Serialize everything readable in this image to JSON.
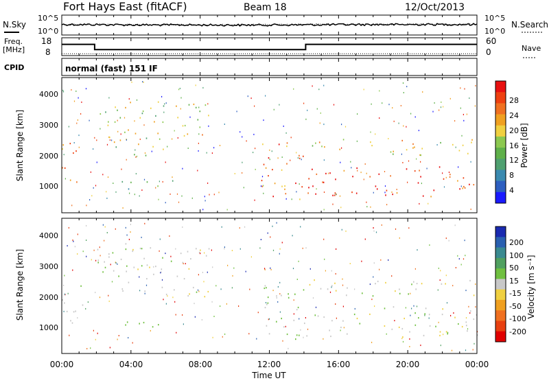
{
  "header": {
    "station": "Fort Hays East (fitACF)",
    "beam": "Beam 18",
    "date": "12/Oct/2013"
  },
  "top_panel": {
    "left_label": "N.Sky",
    "right_label": "N.Search",
    "y_top": "10^5",
    "y_bottom": "10^0"
  },
  "freq_panel": {
    "left_label": "Freq.",
    "left_unit": "[MHz]",
    "right_label": "Nave",
    "left_ticks": [
      "18",
      "8"
    ],
    "right_ticks": [
      "60",
      "0"
    ]
  },
  "cpid_panel": {
    "label": "CPID",
    "text": "normal (fast) 151 IF"
  },
  "x_axis": {
    "label": "Time UT",
    "ticks": [
      "00:00",
      "04:00",
      "08:00",
      "12:00",
      "16:00",
      "20:00",
      "00:00"
    ]
  },
  "power_panel": {
    "ylabel": "Slant Range [km]",
    "yticks": [
      "1000",
      "2000",
      "3000",
      "4000"
    ],
    "colorbar_label": "Power [dB]",
    "colorbar_ticks": [
      "4",
      "8",
      "12",
      "16",
      "20",
      "24",
      "28"
    ],
    "colors": [
      "#1a1aff",
      "#2d5fc0",
      "#3a8ab0",
      "#4fa070",
      "#5fb04a",
      "#8cc850",
      "#f0d040",
      "#f0a020",
      "#f07020",
      "#ee4010",
      "#e81010"
    ]
  },
  "velocity_panel": {
    "ylabel": "Slant Range [km]",
    "yticks": [
      "1000",
      "2000",
      "3000",
      "4000"
    ],
    "colorbar_label": "Velocity [m s⁻¹]",
    "colorbar_ticks": [
      "200",
      "100",
      "50",
      "15",
      "-15",
      "-50",
      "-100",
      "-200"
    ],
    "colors": [
      "#1a2ab0",
      "#2a60b0",
      "#3a8a90",
      "#50a060",
      "#70c040",
      "#c8c8c8",
      "#f0d040",
      "#f0a020",
      "#f07020",
      "#e84010",
      "#e00000"
    ]
  },
  "chart_data": [
    {
      "type": "line",
      "title": "Fort Hays East (fitACF) Beam 18 12/Oct/2013",
      "series": [
        {
          "name": "N.Sky",
          "x": [
            0,
            2,
            4,
            6,
            8,
            10,
            12,
            14,
            16,
            18,
            20,
            22,
            24
          ],
          "values": [
            800,
            700,
            600,
            550,
            550,
            500,
            550,
            600,
            700,
            750,
            750,
            800,
            800
          ]
        },
        {
          "name": "N.Search",
          "x": [
            0,
            2,
            4,
            6,
            8,
            10,
            12,
            14,
            16,
            18,
            20,
            22,
            24
          ],
          "values": [
            900,
            800,
            700,
            650,
            600,
            600,
            650,
            800,
            1000,
            1000,
            1000,
            1000,
            1000
          ]
        }
      ],
      "xlabel": "",
      "ylabel": "",
      "ylim": [
        "10^0",
        "10^5"
      ],
      "ylog": true
    },
    {
      "type": "line",
      "series": [
        {
          "name": "Freq.",
          "x": [
            0,
            1.9,
            1.9,
            14.1,
            14.1,
            24
          ],
          "values": [
            15,
            15,
            11.5,
            11.5,
            15,
            15
          ]
        },
        {
          "name": "Nave",
          "x": [
            0,
            24
          ],
          "values": [
            2,
            2
          ]
        }
      ],
      "ylim": [
        8,
        18
      ],
      "y2lim": [
        0,
        60
      ]
    },
    {
      "type": "heatmap",
      "series_name": "Power [dB]",
      "xlabel": "Time UT",
      "ylabel": "Slant Range [km]",
      "xlim": [
        0,
        24
      ],
      "ylim": [
        500,
        4500
      ],
      "zlim": [
        0,
        30
      ],
      "regions": [
        {
          "t0": 0.0,
          "t1": 1.4,
          "r0": 1400,
          "r1": 2600,
          "power": 26
        },
        {
          "t0": 1.9,
          "t1": 6.0,
          "r0": 2200,
          "r1": 3800,
          "power": 15
        },
        {
          "t0": 6.0,
          "t1": 8.5,
          "r0": 2700,
          "r1": 3800,
          "power": 18
        },
        {
          "t0": 3.0,
          "t1": 6.5,
          "r0": 1200,
          "r1": 1500,
          "power": 12
        },
        {
          "t0": 11.5,
          "t1": 14.0,
          "r0": 900,
          "r1": 2700,
          "power": 24
        },
        {
          "t0": 14.0,
          "t1": 24.0,
          "r0": 1000,
          "r1": 1900,
          "power": 28
        },
        {
          "t0": 14.2,
          "t1": 24.0,
          "r0": 2200,
          "r1": 2700,
          "power": 18
        }
      ]
    },
    {
      "type": "heatmap",
      "series_name": "Velocity [m s^-1]",
      "xlabel": "Time UT",
      "ylabel": "Slant Range [km]",
      "xlim": [
        0,
        24
      ],
      "ylim": [
        500,
        4500
      ],
      "zlim": [
        -200,
        200
      ],
      "regions": [
        {
          "t0": 0.0,
          "t1": 1.4,
          "r0": 1400,
          "r1": 2600,
          "velocity": 0
        },
        {
          "t0": 1.9,
          "t1": 8.5,
          "r0": 2200,
          "r1": 3800,
          "velocity": 0
        },
        {
          "t0": 3.0,
          "t1": 6.5,
          "r0": 1200,
          "r1": 1500,
          "velocity": 30
        },
        {
          "t0": 11.5,
          "t1": 14.0,
          "r0": 900,
          "r1": 2700,
          "velocity": 30
        },
        {
          "t0": 14.0,
          "t1": 24.0,
          "r0": 1000,
          "r1": 1900,
          "velocity": 0
        },
        {
          "t0": 14.2,
          "t1": 24.0,
          "r0": 2200,
          "r1": 2700,
          "velocity": 0
        }
      ]
    }
  ]
}
